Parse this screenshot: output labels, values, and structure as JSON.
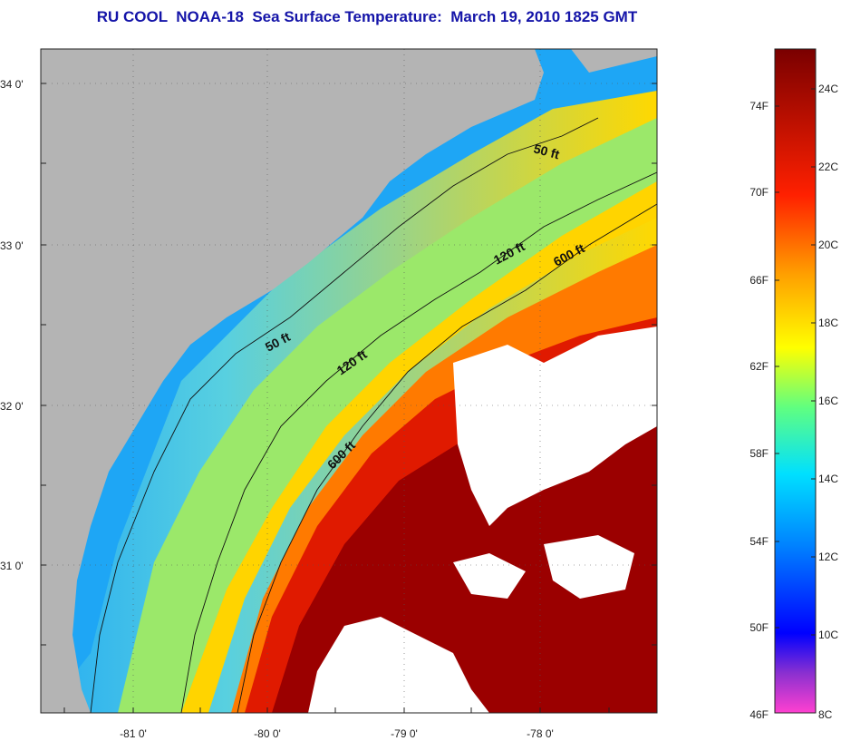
{
  "title": "RU COOL  NOAA-18  Sea Surface Temperature:  March 19, 2010 1825 GMT",
  "map": {
    "lat_ticks": [
      "34 0'",
      "33 0'",
      "32 0'",
      "31 0'"
    ],
    "lon_ticks": [
      "-81 0'",
      "-80 0'",
      "-79 0'",
      "-78 0'"
    ],
    "lat_range": [
      30.2,
      34.2
    ],
    "lon_range": [
      -81.7,
      -77.1
    ],
    "contours": [
      "50 ft",
      "120 ft",
      "600 ft",
      "50 ft",
      "120 ft",
      "600 ft"
    ],
    "colors": {
      "land": "#b4b4b4",
      "cloud": "#ffffff",
      "cold": "#19a0f0",
      "mid": "#ffd800",
      "warm": "#ff5a00",
      "hot": "#9b0000"
    }
  },
  "colorbar": {
    "fahrenheit_labels": [
      "74F",
      "70F",
      "66F",
      "62F",
      "58F",
      "54F",
      "50F",
      "46F"
    ],
    "celsius_labels": [
      "24C",
      "22C",
      "20C",
      "18C",
      "16C",
      "14C",
      "12C",
      "10C",
      "8C"
    ],
    "stops": [
      "#ff40d0",
      "#8a30d0",
      "#0000ff",
      "#0080ff",
      "#00e0ff",
      "#60ff80",
      "#ffff00",
      "#ffa000",
      "#ff2000",
      "#7a0000"
    ]
  }
}
